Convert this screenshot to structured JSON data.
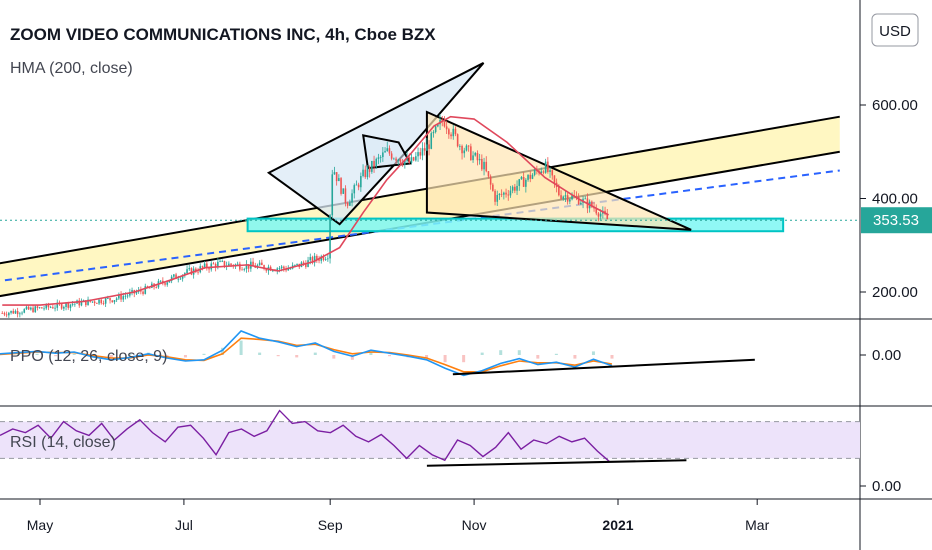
{
  "header": {
    "title": "ZOOM VIDEO COMMUNICATIONS INC, 4h, Cboe BZX",
    "indicator": "HMA (200, close)",
    "currency_button": "USD",
    "last_price": "353.53"
  },
  "panes": {
    "ppo_label": "PPO (12, 26, close, 9)",
    "rsi_label": "RSI (14, close)"
  },
  "colors": {
    "accent_teal": "#26a69a",
    "channel_fill": "#fff7c2",
    "support_zone": "#00e5e5",
    "hma_line": "#e0485c",
    "midline_dash": "#2962ff",
    "ppo_line": "#2196f3",
    "ppo_signal": "#ff7f0e",
    "rsi_line": "#7b1fa2",
    "rsi_band": "#ede3fa"
  },
  "chart_data": {
    "type": "line",
    "title": "ZOOM VIDEO COMMUNICATIONS INC, 4h, Cboe BZX",
    "price_axis": {
      "ticks": [
        600,
        400,
        200
      ],
      "tick_labels": [
        "600.00",
        "400.00",
        "200.00"
      ],
      "ylim": [
        100,
        650
      ],
      "last": 353.53
    },
    "time_axis": {
      "ticks": [
        "May",
        "Jul",
        "Sep",
        "Nov",
        "2021",
        "Mar"
      ],
      "bold": [
        "2021"
      ]
    },
    "series": [
      {
        "name": "HMA (200, close)",
        "x": [
          "2020-04-15",
          "2020-05-01",
          "2020-05-20",
          "2020-06-10",
          "2020-06-25",
          "2020-07-10",
          "2020-07-28",
          "2020-08-10",
          "2020-08-25",
          "2020-09-05",
          "2020-09-15",
          "2020-09-25",
          "2020-10-05",
          "2020-10-15",
          "2020-10-22",
          "2020-11-01",
          "2020-11-15",
          "2020-12-01",
          "2020-12-15",
          "2020-12-28"
        ],
        "values": [
          172,
          172,
          180,
          200,
          225,
          252,
          258,
          245,
          265,
          295,
          370,
          440,
          495,
          555,
          575,
          570,
          520,
          445,
          400,
          365
        ]
      }
    ],
    "price_path": {
      "x": [
        "2020-04-15",
        "2020-05-01",
        "2020-05-15",
        "2020-06-01",
        "2020-06-15",
        "2020-07-01",
        "2020-07-15",
        "2020-08-01",
        "2020-08-15",
        "2020-08-31",
        "2020-09-02",
        "2020-09-08",
        "2020-09-15",
        "2020-09-25",
        "2020-10-05",
        "2020-10-12",
        "2020-10-19",
        "2020-10-26",
        "2020-11-05",
        "2020-11-10",
        "2020-11-20",
        "2020-12-01",
        "2020-12-07",
        "2020-12-15",
        "2020-12-22",
        "2020-12-28"
      ],
      "values": [
        155,
        165,
        175,
        185,
        205,
        240,
        260,
        255,
        250,
        280,
        470,
        390,
        450,
        500,
        475,
        510,
        570,
        515,
        470,
        400,
        430,
        470,
        410,
        400,
        380,
        353
      ]
    },
    "annotations": {
      "channel": {
        "lower": [
          [
            "2020-04-01",
            180
          ],
          [
            "2021-04-05",
            500
          ]
        ],
        "upper": [
          [
            "2020-04-01",
            250
          ],
          [
            "2021-04-05",
            575
          ]
        ],
        "mid": [
          [
            "2020-04-01",
            215
          ],
          [
            "2021-04-05",
            460
          ]
        ]
      },
      "support_zone": {
        "from": "2020-07-28",
        "to": "2021-03-12",
        "low": 330,
        "high": 357
      },
      "rising_wedge": [
        [
          "2020-08-06",
          455
        ],
        [
          "2020-09-05",
          345
        ],
        [
          "2020-10-06",
          515
        ],
        [
          "2020-11-05",
          690
        ],
        [
          "2020-08-06",
          455
        ]
      ],
      "flag": [
        [
          "2020-09-15",
          535
        ],
        [
          "2020-09-30",
          520
        ],
        [
          "2020-10-05",
          475
        ],
        [
          "2020-09-17",
          465
        ],
        [
          "2020-09-15",
          535
        ]
      ],
      "descending_triangle": [
        [
          "2020-10-12",
          585
        ],
        [
          "2021-02-01",
          333
        ],
        [
          "2020-10-12",
          370
        ],
        [
          "2020-10-12",
          585
        ]
      ]
    },
    "ppo": {
      "zero_label": "0.00",
      "trendline": [
        [
          "2020-10-23",
          -3.2
        ],
        [
          "2021-02-28",
          -0.8
        ]
      ],
      "line": [
        0.2,
        0.4,
        0.6,
        0.3,
        0.5,
        -0.3,
        -0.8,
        -0.4,
        0.2,
        -0.5,
        -1.0,
        -0.8,
        0.8,
        4.0,
        2.8,
        2.2,
        1.4,
        2.0,
        0.6,
        -0.2,
        0.8,
        0.3,
        -0.2,
        -0.8,
        -2.2,
        -3.4,
        -2.6,
        -1.4,
        -0.6,
        -1.6,
        -1.2,
        -2.0,
        -0.7,
        -1.8
      ],
      "signal": [
        0.1,
        0.3,
        0.5,
        0.4,
        0.4,
        -0.1,
        -0.5,
        -0.5,
        0.0,
        -0.3,
        -0.8,
        -0.9,
        0.2,
        2.8,
        2.6,
        2.3,
        1.6,
        1.8,
        0.9,
        0.2,
        0.5,
        0.4,
        0.0,
        -0.5,
        -1.6,
        -2.8,
        -2.8,
        -1.8,
        -1.0,
        -1.3,
        -1.3,
        -1.7,
        -1.0,
        -1.5
      ]
    },
    "rsi": {
      "zero_label": "0.00",
      "band": [
        30,
        70
      ],
      "trendline": [
        [
          "2020-10-12",
          22
        ],
        [
          "2021-01-30",
          28
        ]
      ],
      "values": [
        55,
        62,
        58,
        66,
        52,
        70,
        60,
        55,
        68,
        50,
        62,
        72,
        58,
        48,
        64,
        66,
        52,
        34,
        58,
        62,
        54,
        60,
        82,
        68,
        70,
        60,
        58,
        66,
        54,
        48,
        56,
        44,
        30,
        44,
        34,
        28,
        50,
        44,
        32,
        42,
        58,
        40,
        50,
        46,
        54,
        48,
        52,
        38,
        26
      ]
    }
  }
}
